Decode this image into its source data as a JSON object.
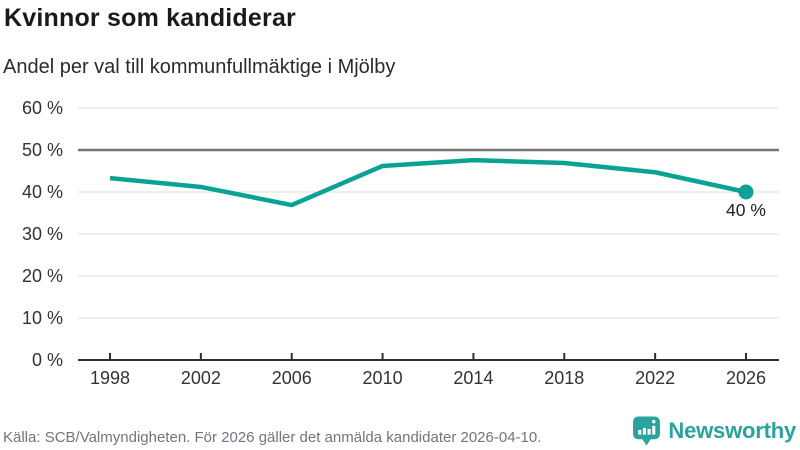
{
  "header": {
    "title": "Kvinnor som kandiderar",
    "subtitle": "Andel per val till kommunfullmäktige i Mjölby"
  },
  "chart_data": {
    "type": "line",
    "title": "Kvinnor som kandiderar",
    "subtitle": "Andel per val till kommunfullmäktige i Mjölby",
    "categories": [
      "1998",
      "2002",
      "2006",
      "2010",
      "2014",
      "2018",
      "2022",
      "2026"
    ],
    "values": [
      43.3,
      41.2,
      36.9,
      46.2,
      47.6,
      46.9,
      44.7,
      40
    ],
    "end_label": "40 %",
    "xlabel": "",
    "ylabel": "",
    "ylim": [
      0,
      60
    ],
    "yticks": [
      0,
      10,
      20,
      30,
      40,
      50,
      60
    ],
    "ytick_labels": [
      "0 %",
      "10 %",
      "20 %",
      "30 %",
      "40 %",
      "50 %",
      "60 %"
    ],
    "reference_line": 50,
    "grid": true,
    "legend": "none",
    "line_color": "#0aa295",
    "grid_color": "#e3e3e3",
    "reference_color": "#757575",
    "axis_color": "#2f2f2f",
    "tick_label_color": "#333333",
    "end_label_color": "#222222"
  },
  "footer": {
    "source": "Källa: SCB/Valmyndigheten. För 2026 gäller det anmälda kandidater 2026-04-10.",
    "brand": "Newsworthy",
    "brand_color": "#2ba39d"
  }
}
